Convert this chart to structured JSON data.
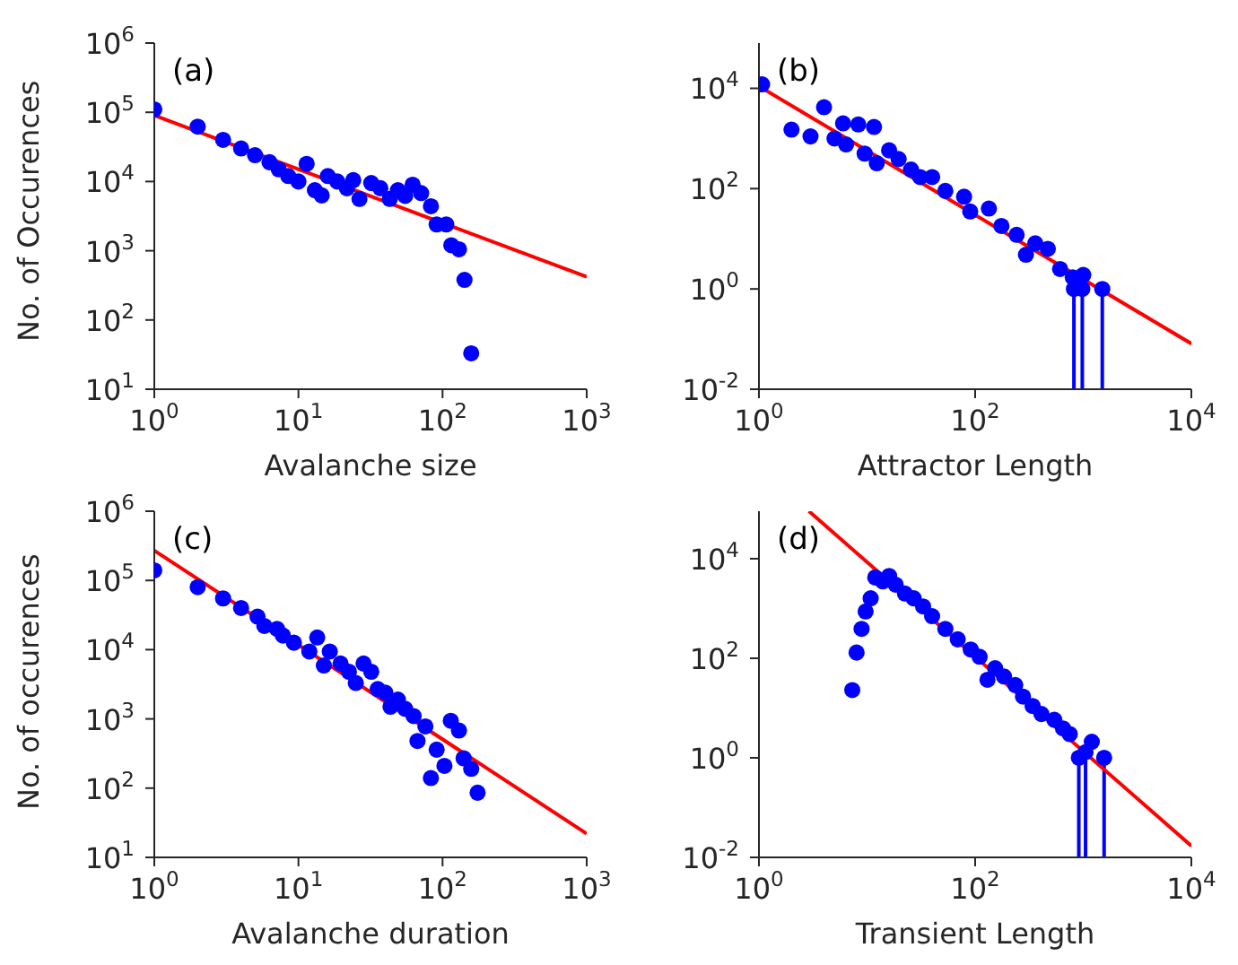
{
  "chart_data": [
    {
      "type": "scatter",
      "annotations": [
        "(a)"
      ],
      "xlabel": "Avalanche size",
      "ylabel": "No. of Occurences",
      "log": "xy",
      "grid": false,
      "legend": false,
      "xlim": [
        1,
        1000
      ],
      "ylim": [
        10,
        1000000
      ],
      "xticks": [
        {
          "value": 1,
          "label": "10$^{0}$"
        },
        {
          "value": 10,
          "label": "10$^{1}$"
        },
        {
          "value": 100,
          "label": "10$^{2}$"
        },
        {
          "value": 1000,
          "label": "10$^{3}$"
        }
      ],
      "yticks": [
        {
          "value": 10,
          "label": "10$^{1}$"
        },
        {
          "value": 100,
          "label": "10$^{2}$"
        },
        {
          "value": 1000,
          "label": "10$^{3}$"
        },
        {
          "value": 10000,
          "label": "10$^{4}$"
        },
        {
          "value": 100000,
          "label": "10$^{5}$"
        },
        {
          "value": 1000000,
          "label": "10$^{6}$"
        }
      ],
      "series": [
        {
          "marker": "circle",
          "color": "#0000ff",
          "x": [
            1,
            2,
            3,
            4,
            5,
            6.3,
            7.3,
            8.5,
            10,
            11.4,
            13,
            14.5,
            16,
            18.6,
            21.7,
            24,
            26.5,
            32,
            37,
            43,
            49,
            55,
            62,
            71,
            83,
            91,
            106,
            115,
            130,
            142,
            158
          ],
          "values": [
            110000,
            62000,
            40000,
            30000,
            24000,
            19000,
            15000,
            12000,
            10000,
            18000,
            7500,
            6300,
            12000,
            10000,
            8000,
            10500,
            5600,
            9500,
            8000,
            5600,
            7500,
            6200,
            9000,
            6800,
            4400,
            2400,
            2400,
            1200,
            1050,
            380,
            33
          ]
        },
        {
          "type": "line",
          "marker": "none",
          "color": "#ff0000",
          "x": [
            1,
            1000
          ],
          "values": [
            90000,
            420
          ]
        }
      ]
    },
    {
      "type": "scatter",
      "annotations": [
        "(b)"
      ],
      "xlabel": "Attractor Length",
      "log": "xy",
      "grid": false,
      "legend": false,
      "xlim": [
        1,
        10000
      ],
      "ylim": [
        0.01,
        80000
      ],
      "xticks": [
        {
          "value": 1,
          "label": "10$^{0}$"
        },
        {
          "value": 100,
          "label": "10$^{2}$"
        },
        {
          "value": 10000,
          "label": "10$^{4}$"
        }
      ],
      "yticks": [
        {
          "value": 0.01,
          "label": "10$^{-2}$"
        },
        {
          "value": 1,
          "label": "10$^{0}$"
        },
        {
          "value": 100,
          "label": "10$^{2}$"
        },
        {
          "value": 10000,
          "label": "10$^{4}$"
        }
      ],
      "series": [
        {
          "marker": "circle",
          "color": "#0000ff",
          "x": [
            1.07,
            2,
            3,
            4,
            5,
            6,
            6.4,
            8.3,
            9.5,
            11.6,
            12.3,
            16,
            19.6,
            25.5,
            31,
            40,
            53,
            79,
            90,
            134,
            175,
            242,
            295,
            360,
            470,
            610,
            800,
            820,
            980,
            1000,
            1500
          ],
          "values": [
            12000,
            1500,
            1100,
            4200,
            1000,
            2000,
            760,
            1900,
            500,
            1700,
            320,
            580,
            390,
            240,
            170,
            170,
            90,
            69,
            35,
            40,
            18,
            12,
            4.8,
            8.1,
            6.3,
            2.5,
            1.7,
            1,
            1,
            1.9,
            1
          ],
          "errors": [
            null,
            null,
            null,
            null,
            null,
            null,
            null,
            null,
            null,
            null,
            null,
            null,
            null,
            null,
            null,
            null,
            null,
            null,
            null,
            null,
            null,
            null,
            null,
            null,
            null,
            null,
            null,
            [
              0.01,
              1
            ],
            [
              0.01,
              1
            ],
            null,
            [
              0.01,
              1
            ]
          ]
        },
        {
          "type": "line",
          "marker": "none",
          "color": "#ff0000",
          "x": [
            1,
            10000
          ],
          "values": [
            11000,
            0.081
          ]
        }
      ]
    },
    {
      "type": "scatter",
      "annotations": [
        "(c)"
      ],
      "xlabel": "Avalanche duration",
      "ylabel": "No. of occurences",
      "log": "xy",
      "grid": false,
      "legend": false,
      "xlim": [
        1,
        1000
      ],
      "ylim": [
        10,
        1000000
      ],
      "xticks": [
        {
          "value": 1,
          "label": "10$^{0}$"
        },
        {
          "value": 10,
          "label": "10$^{1}$"
        },
        {
          "value": 100,
          "label": "10$^{2}$"
        },
        {
          "value": 1000,
          "label": "10$^{3}$"
        }
      ],
      "yticks": [
        {
          "value": 10,
          "label": "10$^{1}$"
        },
        {
          "value": 100,
          "label": "10$^{2}$"
        },
        {
          "value": 1000,
          "label": "10$^{3}$"
        },
        {
          "value": 10000,
          "label": "10$^{4}$"
        },
        {
          "value": 100000,
          "label": "10$^{5}$"
        },
        {
          "value": 1000000,
          "label": "10$^{6}$"
        }
      ],
      "series": [
        {
          "marker": "circle",
          "color": "#0000ff",
          "x": [
            1,
            2,
            3,
            4,
            5.2,
            5.8,
            7.1,
            7.8,
            9.3,
            11.9,
            13.5,
            15,
            16.5,
            19.6,
            22.4,
            25,
            28.3,
            32,
            35.5,
            40,
            43.5,
            49,
            55,
            63,
            67,
            76,
            83,
            91,
            103,
            114,
            130,
            140,
            158,
            175
          ],
          "values": [
            140000,
            80000,
            55000,
            40000,
            30000,
            22000,
            20000,
            16000,
            12600,
            9400,
            15000,
            5900,
            9400,
            6300,
            4800,
            3300,
            6300,
            4800,
            2700,
            2400,
            1500,
            1900,
            1400,
            1100,
            480,
            780,
            140,
            360,
            210,
            940,
            680,
            270,
            190,
            86
          ]
        },
        {
          "type": "line",
          "marker": "none",
          "color": "#ff0000",
          "x": [
            1,
            1000
          ],
          "values": [
            270000,
            22
          ]
        }
      ]
    },
    {
      "type": "scatter",
      "annotations": [
        "(d)"
      ],
      "xlabel": "Transient Length",
      "log": "xy",
      "grid": false,
      "legend": false,
      "xlim": [
        1,
        10000
      ],
      "ylim": [
        0.01,
        90000
      ],
      "xticks": [
        {
          "value": 1,
          "label": "10$^{0}$"
        },
        {
          "value": 100,
          "label": "10$^{2}$"
        },
        {
          "value": 10000,
          "label": "10$^{4}$"
        }
      ],
      "yticks": [
        {
          "value": 0.01,
          "label": "10$^{-2}$"
        },
        {
          "value": 1,
          "label": "10$^{0}$"
        },
        {
          "value": 100,
          "label": "10$^{2}$"
        },
        {
          "value": 10000,
          "label": "10$^{4}$"
        }
      ],
      "series": [
        {
          "marker": "circle",
          "color": "#0000ff",
          "x": [
            7.3,
            8,
            8.9,
            9.7,
            10.8,
            11.9,
            14,
            16,
            18.4,
            22.4,
            27,
            33,
            40,
            53,
            69,
            91,
            110,
            130,
            153,
            185,
            235,
            277,
            340,
            410,
            540,
            650,
            750,
            910,
            1050,
            1200,
            1560
          ],
          "values": [
            23,
            130,
            390,
            870,
            1600,
            4200,
            3500,
            4500,
            3000,
            2000,
            1600,
            1100,
            700,
            390,
            240,
            150,
            107,
            37,
            63,
            43,
            29,
            17,
            11,
            7.6,
            5.8,
            3.9,
            3,
            1,
            1.3,
            2.1,
            1
          ],
          "errors": [
            null,
            null,
            null,
            null,
            null,
            null,
            null,
            null,
            null,
            null,
            null,
            null,
            null,
            null,
            null,
            null,
            null,
            null,
            null,
            null,
            null,
            null,
            null,
            null,
            null,
            null,
            null,
            [
              0.01,
              1
            ],
            [
              0.01,
              1.3
            ],
            null,
            [
              0.01,
              1
            ]
          ]
        },
        {
          "type": "line",
          "marker": "none",
          "color": "#ff0000",
          "x": [
            2.9,
            10000
          ],
          "values": [
            90000,
            0.017
          ]
        }
      ]
    }
  ]
}
